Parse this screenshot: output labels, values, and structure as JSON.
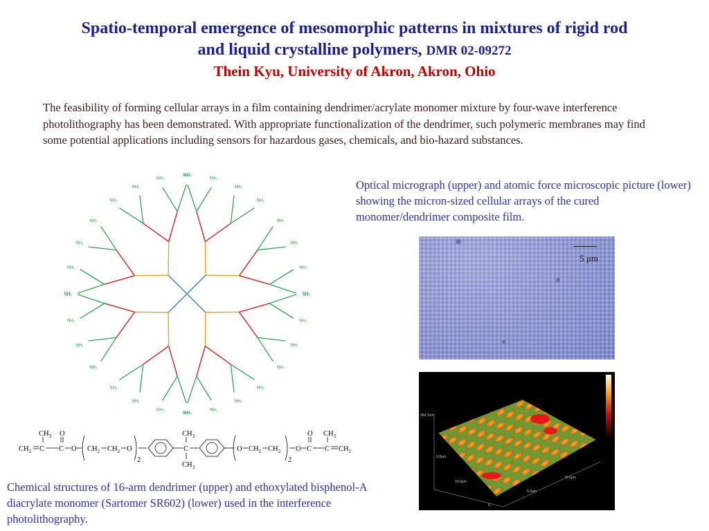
{
  "header": {
    "title_line1": "Spatio-temporal emergence of mesomorphic patterns in mixtures of rigid rod",
    "title_line2": "and liquid crystalline polymers,",
    "grant": "DMR 02-09272",
    "author": "Thein Kyu, University of Akron, Akron, Ohio"
  },
  "abstract": "The feasibility of forming cellular arrays in a film containing dendrimer/acrylate monomer mixture by four-wave interference photolithography has been demonstrated. With appropriate functionalization of the dendrimer, such polymeric membranes may find some potential applications including sensors for hazardous gases, chemicals, and bio-hazard substances.",
  "micrograph_caption": "Optical micrograph (upper) and atomic force microscopic picture (lower) showing the micron-sized cellular arrays of the cured monomer/dendrimer composite film.",
  "scale_label": "5 μm",
  "chem_caption": "Chemical structures of 16-arm dendrimer (upper) and ethoxylated bisphenol-A diacrylate monomer (Sartomer SR602) (lower) used in the interference photolithography.",
  "afm_labels": {
    "height": "354.1nm",
    "x_mid": "5.0μm",
    "x_end": "10.0μm",
    "y_mid": "5.0μm",
    "y_end": "10.0μm",
    "origin": "0"
  },
  "monomer": {
    "ch3": "CH",
    "sub3": "3",
    "o": "O",
    "ch2": "CH",
    "sub2": "2",
    "c": "C",
    "n2": "2"
  },
  "colors": {
    "title": "#1a1f8e",
    "author": "#c00000",
    "caption": "#2b33a6",
    "core": "#3b7fc4",
    "gen1": "#f0a020",
    "gen2": "#d42020",
    "gen3": "#20a040"
  }
}
